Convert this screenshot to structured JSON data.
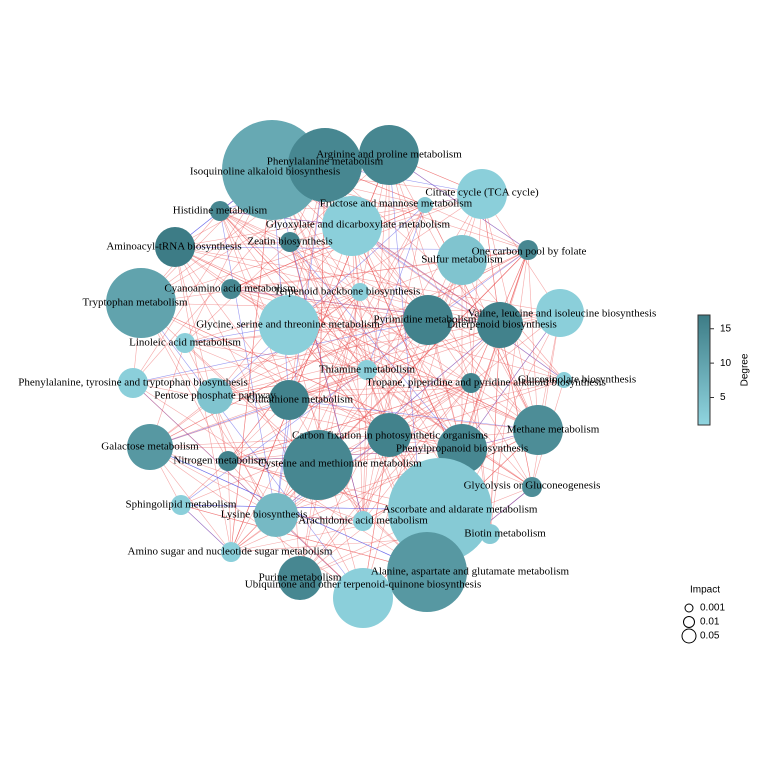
{
  "nodes": [
    {
      "label": "Isoquinoline alkaloid biosynthesis",
      "degree": 9
    },
    {
      "label": "Phenylalanine metabolism",
      "degree": 15
    },
    {
      "label": "Arginine and proline metabolism",
      "degree": 15
    },
    {
      "label": "Citrate cycle (TCA cycle)",
      "degree": 2
    },
    {
      "label": "Fructose and mannose metabolism",
      "degree": 3
    },
    {
      "label": "Histidine metabolism",
      "degree": 15
    },
    {
      "label": "Glyoxylate and dicarboxylate metabolism",
      "degree": 2
    },
    {
      "label": "Zeatin biosynthesis",
      "degree": 16
    },
    {
      "label": "Aminoacyl-tRNA biosynthesis",
      "degree": 17
    },
    {
      "label": "One carbon pool by folate",
      "degree": 15
    },
    {
      "label": "Sulfur metabolism",
      "degree": 4
    },
    {
      "label": "Tryptophan metabolism",
      "degree": 10
    },
    {
      "label": "Cyanoamino acid metabolism",
      "degree": 15
    },
    {
      "label": "Terpenoid backbone biosynthesis",
      "degree": 2
    },
    {
      "label": "Valine, leucine and isoleucine biosynthesis",
      "degree": 2
    },
    {
      "label": "Pyrimidine metabolism",
      "degree": 16
    },
    {
      "label": "Diterpenoid biosynthesis",
      "degree": 16
    },
    {
      "label": "Glycine, serine and threonine metabolism",
      "degree": 2
    },
    {
      "label": "Linoleic acid metabolism",
      "degree": 2
    },
    {
      "label": "Phenylalanine, tyrosine and tryptophan biosynthesis",
      "degree": 2
    },
    {
      "label": "Thiamine metabolism",
      "degree": 2
    },
    {
      "label": "Pentose phosphate pathway",
      "degree": 4
    },
    {
      "label": "Glutathione metabolism",
      "degree": 16
    },
    {
      "label": "Tropane, piperidine and pyridine alkaloid biosynthesis",
      "degree": 16
    },
    {
      "label": "Glucosinolate biosynthesis",
      "degree": 2
    },
    {
      "label": "Methane metabolism",
      "degree": 14
    },
    {
      "label": "Carbon fixation in photosynthetic organisms",
      "degree": 16
    },
    {
      "label": "Galactose metabolism",
      "degree": 12
    },
    {
      "label": "Phenylpropanoid biosynthesis",
      "degree": 15
    },
    {
      "label": "Nitrogen metabolism",
      "degree": 16
    },
    {
      "label": "Cysteine and methionine metabolism",
      "degree": 15
    },
    {
      "label": "Glycolysis or Gluconeogenesis",
      "degree": 14
    },
    {
      "label": "Sphingolipid metabolism",
      "degree": 2
    },
    {
      "label": "Ascorbate and aldarate metabolism",
      "degree": 3
    },
    {
      "label": "Lysine biosynthesis",
      "degree": 6
    },
    {
      "label": "Arachidonic acid metabolism",
      "degree": 2
    },
    {
      "label": "Biotin metabolism",
      "degree": 3
    },
    {
      "label": "Amino sugar and nucleotide sugar metabolism",
      "degree": 2
    },
    {
      "label": "Purine metabolism",
      "degree": 15
    },
    {
      "label": "Alanine, aspartate and glutamate metabolism",
      "degree": 12
    },
    {
      "label": "Ubiquinone and other terpenoid-quinone biosynthesis",
      "degree": 2
    }
  ],
  "degree_legend": {
    "title": "Degree",
    "range": [
      1,
      17
    ],
    "ticks": [
      5,
      10,
      15
    ]
  },
  "impact_legend": {
    "title": "Impact",
    "levels": [
      0.001,
      0.01,
      0.05
    ]
  }
}
